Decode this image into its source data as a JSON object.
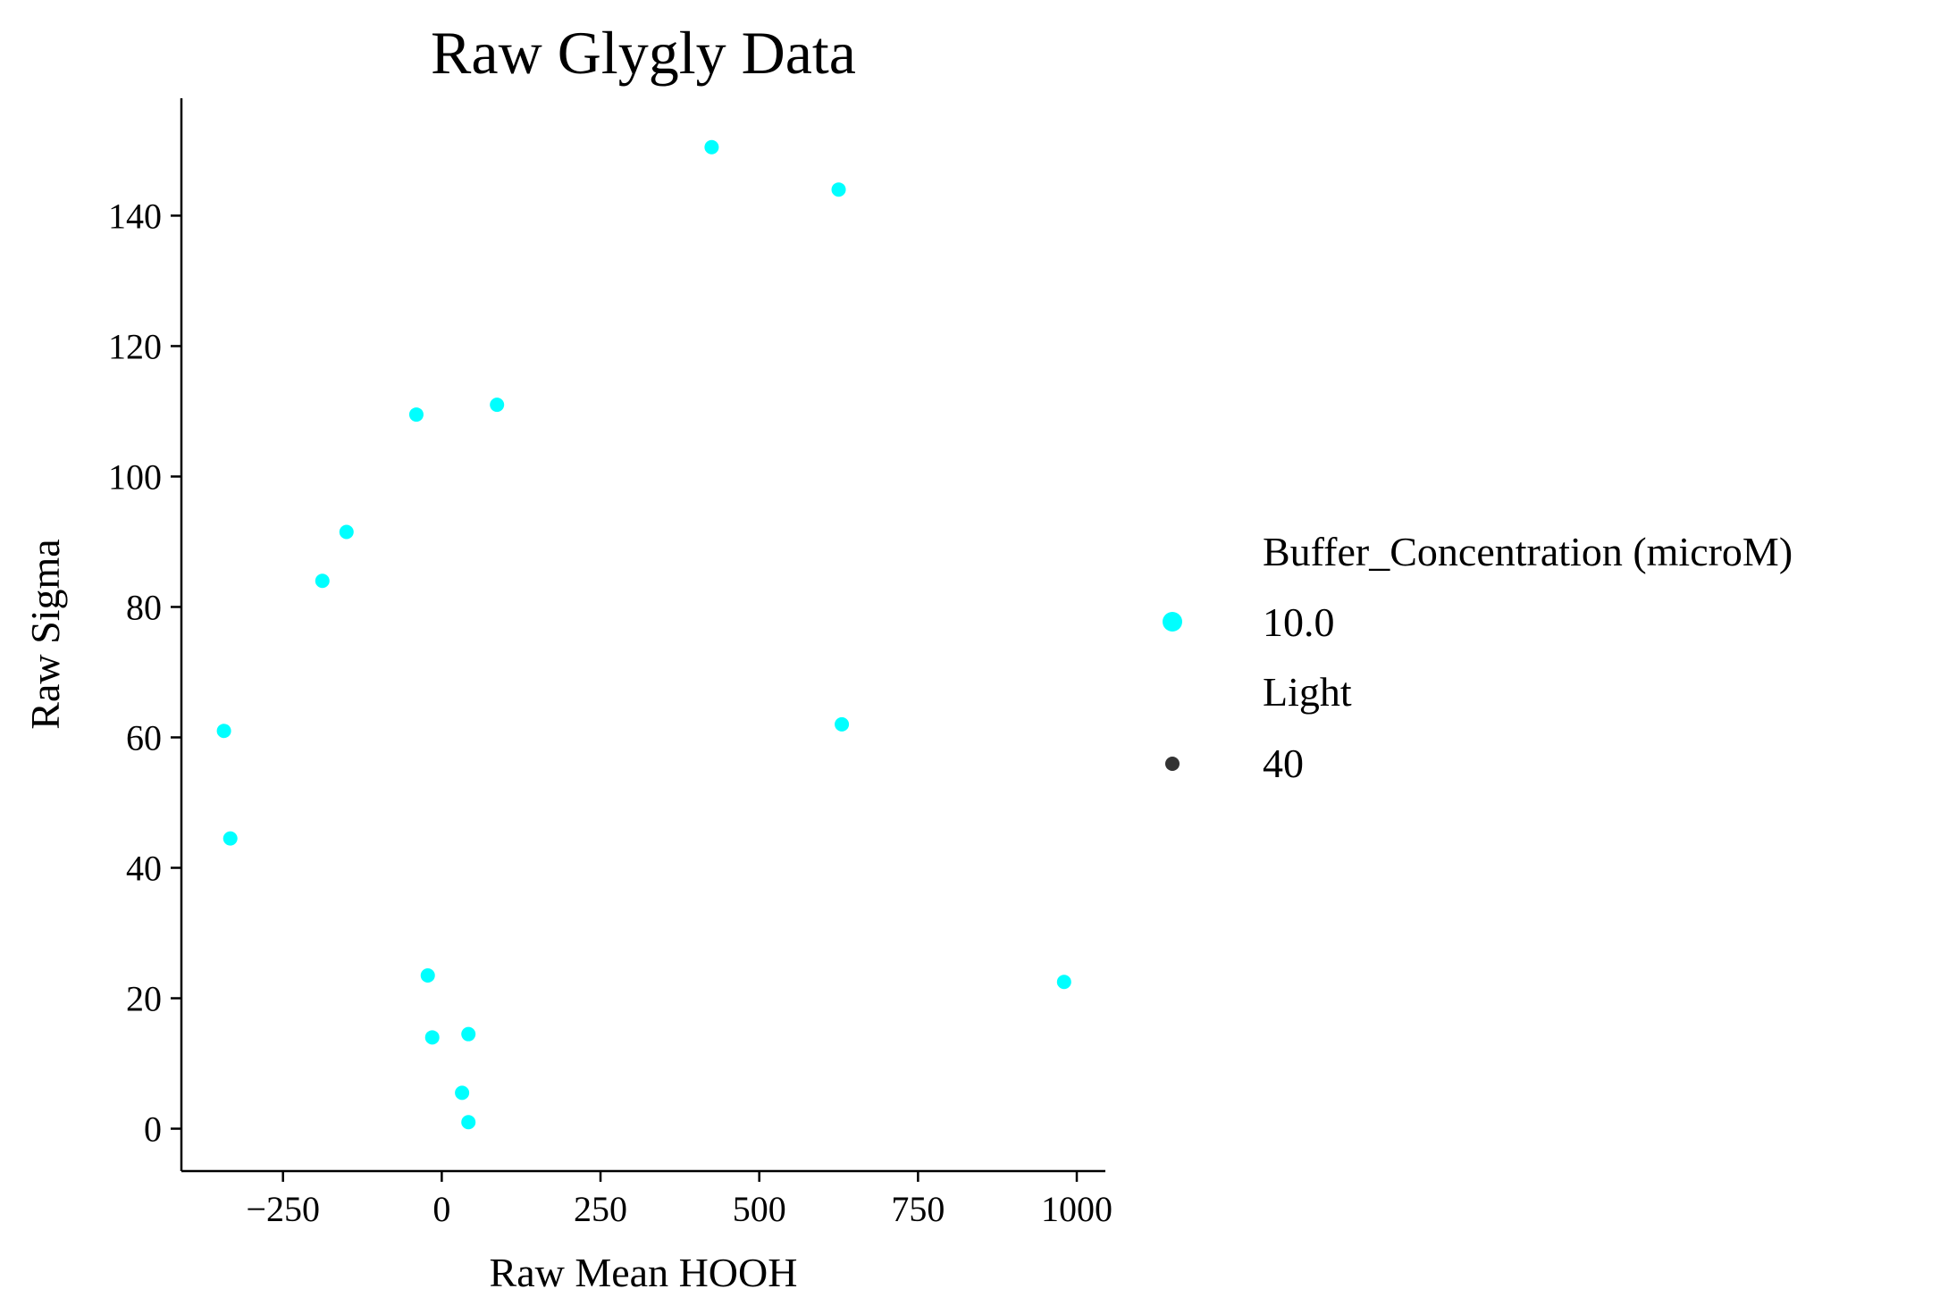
{
  "chart_data": {
    "type": "scatter",
    "title": "Raw Glygly Data",
    "xlabel": "Raw Mean HOOH",
    "ylabel": "Raw Sigma",
    "xlim": [
      -410,
      1045
    ],
    "ylim": [
      -6.5,
      158
    ],
    "xticks": [
      -250,
      0,
      250,
      500,
      750,
      1000
    ],
    "xtick_labels": [
      "−250",
      "0",
      "250",
      "500",
      "750",
      "1000"
    ],
    "yticks": [
      0,
      20,
      40,
      60,
      80,
      100,
      120,
      140
    ],
    "ytick_labels": [
      "0",
      "20",
      "40",
      "60",
      "80",
      "100",
      "120",
      "140"
    ],
    "grid": false,
    "legend": {
      "placement": "right",
      "hue_title": "Buffer_Concentration (microM)",
      "hue_label": "10.0",
      "size_title": "Light",
      "size_label": "40"
    },
    "series": [
      {
        "color": "#00ffff",
        "points": [
          {
            "x": 425,
            "y": 150.5
          },
          {
            "x": 625,
            "y": 144
          },
          {
            "x": -40,
            "y": 109.5
          },
          {
            "x": 87,
            "y": 111
          },
          {
            "x": -150,
            "y": 91.5
          },
          {
            "x": -188,
            "y": 84
          },
          {
            "x": -343,
            "y": 61
          },
          {
            "x": 630,
            "y": 62
          },
          {
            "x": -333,
            "y": 44.5
          },
          {
            "x": -22,
            "y": 23.5
          },
          {
            "x": 980,
            "y": 22.5
          },
          {
            "x": -15,
            "y": 14
          },
          {
            "x": 42,
            "y": 14.5
          },
          {
            "x": 32,
            "y": 5.5
          },
          {
            "x": 42,
            "y": 1
          }
        ]
      }
    ],
    "legend_colors": {
      "hue_marker": "#00ffff",
      "size_marker": "#333333"
    }
  }
}
